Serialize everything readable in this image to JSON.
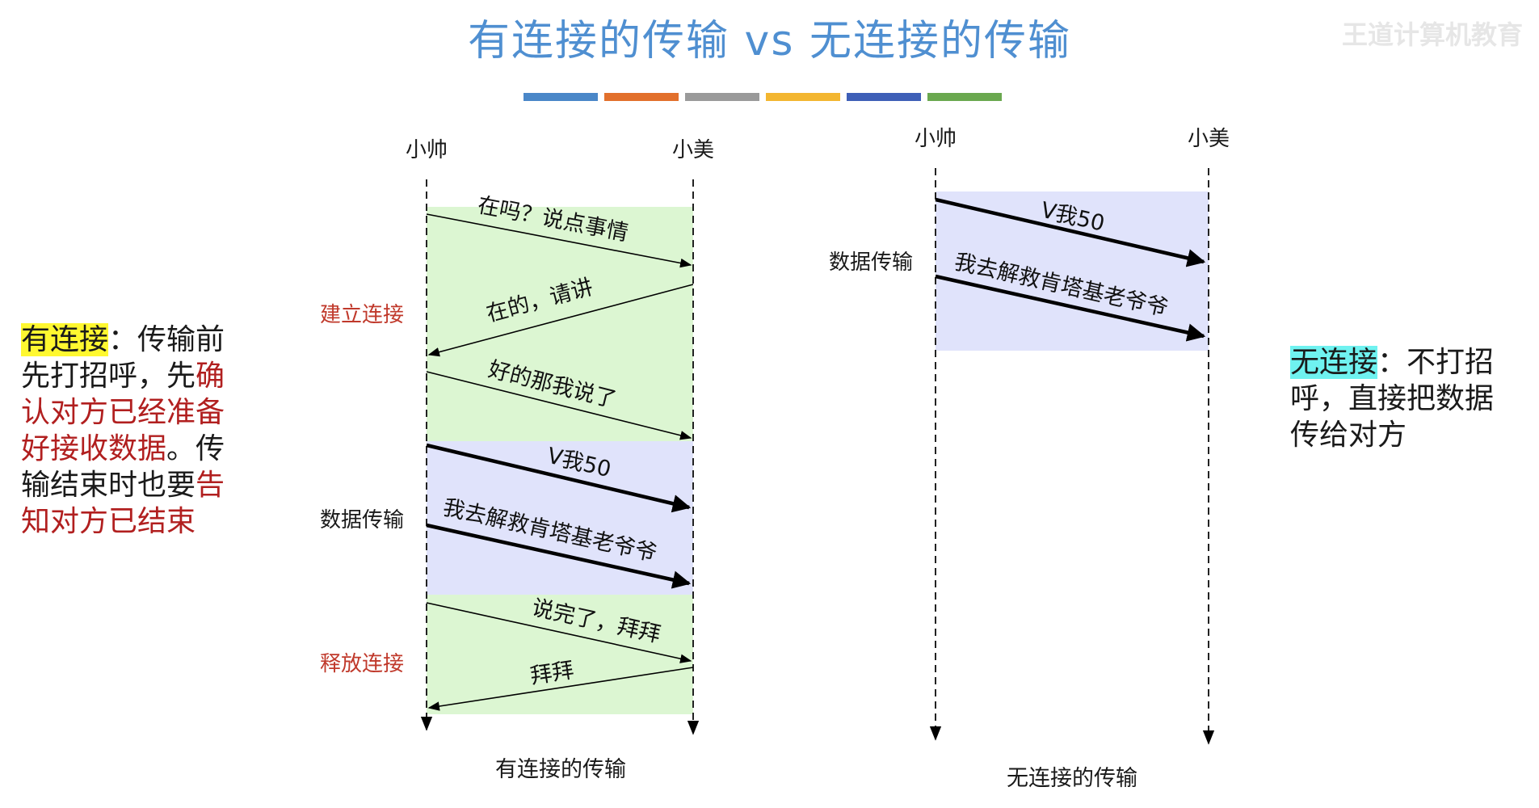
{
  "title": "有连接的传输 vs 无连接的传输",
  "watermark": "王道计算机教育",
  "colors": {
    "title": "#4f8fd1",
    "bars": [
      "#4a87c8",
      "#e2702c",
      "#9a9a9a",
      "#f3b630",
      "#3e5fb7",
      "#6aa84f"
    ],
    "green_zone": "#dcf6d2",
    "blue_zone": "#e0e3fb",
    "red_text": "#c0392b"
  },
  "left_note": {
    "term": "有连接",
    "colon": "：传输前",
    "line2_a": "先打招呼，先",
    "line2_b": "确",
    "line3": "认对方已经准备",
    "line4_a": "好接收数据",
    "line4_b": "。传",
    "line5_a": "输结束时也要",
    "line5_b": "告",
    "line6": "知对方已结束"
  },
  "right_note": {
    "term": "无连接",
    "colon": "：不打招",
    "line2": "呼，直接把数据",
    "line3": "传给对方"
  },
  "connected": {
    "sender": "小帅",
    "receiver": "小美",
    "phase_establish": "建立连接",
    "phase_data": "数据传输",
    "phase_release": "释放连接",
    "caption": "有连接的传输",
    "messages": [
      "在吗？说点事情",
      "在的，请讲",
      "好的那我说了",
      "V我50",
      "我去解救肯塔基老爷爷",
      "说完了，拜拜",
      "拜拜"
    ]
  },
  "connectionless": {
    "sender": "小帅",
    "receiver": "小美",
    "phase_data": "数据传输",
    "caption": "无连接的传输",
    "messages": [
      "V我50",
      "我去解救肯塔基老爷爷"
    ]
  }
}
